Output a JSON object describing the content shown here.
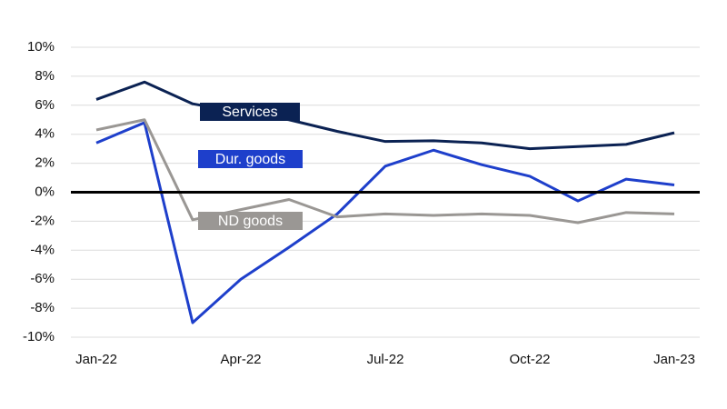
{
  "chart_data": {
    "type": "line",
    "categories": [
      "Jan-22",
      null,
      null,
      "Apr-22",
      null,
      null,
      "Jul-22",
      null,
      null,
      "Oct-22",
      null,
      null,
      "Jan-23"
    ],
    "series": [
      {
        "name": "Services",
        "color": "#0b2253",
        "values": [
          6.4,
          7.6,
          6.1,
          5.5,
          5.0,
          4.2,
          3.5,
          3.55,
          3.4,
          3.0,
          3.15,
          3.3,
          4.1
        ]
      },
      {
        "name": "Dur. goods",
        "color": "#1e3fcb",
        "values": [
          3.4,
          4.8,
          -9.0,
          -6.0,
          -3.8,
          -1.5,
          1.8,
          2.9,
          1.9,
          1.1,
          -0.6,
          0.9,
          0.5
        ]
      },
      {
        "name": "ND goods",
        "color": "#9a9794",
        "values": [
          4.3,
          5.0,
          -1.9,
          -1.2,
          -0.5,
          -1.7,
          -1.5,
          -1.6,
          -1.5,
          -1.6,
          -2.1,
          -1.4,
          -1.5
        ]
      }
    ],
    "ylim": [
      -10,
      10
    ],
    "yticks": [
      {
        "value": 10,
        "label": "10%"
      },
      {
        "value": 8,
        "label": "8%"
      },
      {
        "value": 6,
        "label": "6%"
      },
      {
        "value": 4,
        "label": "4%"
      },
      {
        "value": 2,
        "label": "2%"
      },
      {
        "value": 0,
        "label": "0%"
      },
      {
        "value": -2,
        "label": "-2%"
      },
      {
        "value": -4,
        "label": "-4%"
      },
      {
        "value": -6,
        "label": "-6%"
      },
      {
        "value": -8,
        "label": "-8%"
      },
      {
        "value": -10,
        "label": "-10%"
      }
    ],
    "grid": true
  }
}
